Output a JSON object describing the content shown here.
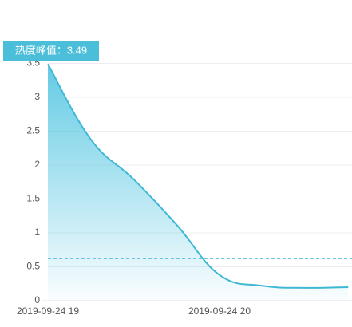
{
  "chart_data": {
    "type": "area",
    "title": "热度峰值：3.49",
    "categories": [
      "2019-09-24 19",
      null,
      null,
      null,
      "2019-09-24 20",
      null,
      null,
      null
    ],
    "values": [
      3.49,
      2.38,
      1.79,
      1.12,
      0.38,
      0.22,
      0.19,
      0.2
    ],
    "color": "#3fb8d4",
    "mark_line": 0.62,
    "ylim": [
      0,
      3.5
    ],
    "yticks": [
      0,
      0.5,
      1,
      1.5,
      2,
      2.5,
      3,
      3.5
    ],
    "grid": true
  }
}
